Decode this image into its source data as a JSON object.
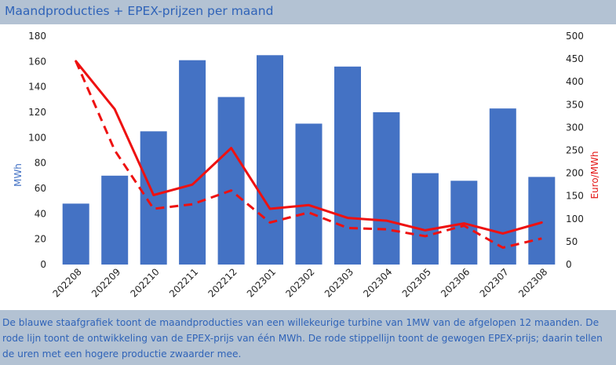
{
  "header": {
    "title": "Maandproducties + EPEX-prijzen per maand"
  },
  "footer": {
    "description": "De blauwe staafgrafiek toont de maandproducties van een willekeurige turbine van 1MW van de afgelopen 12 maanden. De rode lijn toont de ontwikkeling van de EPEX-prijs van één MWh. De rode stippellijn toont de gewogen EPEX-prijs; daarin tellen de uren met een hogere productie zwaarder mee."
  },
  "colors": {
    "bar": "#4472c4",
    "line": "#ee1111",
    "left_axis_title": "#4472c4",
    "right_axis_title": "#e41a1a"
  },
  "chart_data": {
    "type": "bar",
    "categories": [
      "202208",
      "202209",
      "202210",
      "202211",
      "202212",
      "202301",
      "202302",
      "202303",
      "202304",
      "202305",
      "202306",
      "202307",
      "202308"
    ],
    "ylabel": "MWh",
    "ylim": [
      0,
      180
    ],
    "yticks": [
      0,
      20,
      40,
      60,
      80,
      100,
      120,
      140,
      160,
      180
    ],
    "y2label": "Euro/MWh",
    "y2lim": [
      0,
      500
    ],
    "y2ticks": [
      0,
      50,
      100,
      150,
      200,
      250,
      300,
      350,
      400,
      450,
      500
    ],
    "grid": false,
    "series": [
      {
        "type": "bar",
        "axis": "left",
        "values": [
          48,
          70,
          105,
          161,
          132,
          165,
          111,
          156,
          120,
          72,
          66,
          123,
          69
        ]
      },
      {
        "type": "line",
        "axis": "right",
        "style": "solid",
        "values": [
          445,
          340,
          152,
          175,
          255,
          122,
          130,
          102,
          96,
          75,
          90,
          68,
          92
        ]
      },
      {
        "type": "line",
        "axis": "right",
        "style": "dashed",
        "values": [
          445,
          250,
          122,
          132,
          162,
          92,
          114,
          80,
          77,
          62,
          85,
          37,
          57
        ]
      }
    ]
  }
}
